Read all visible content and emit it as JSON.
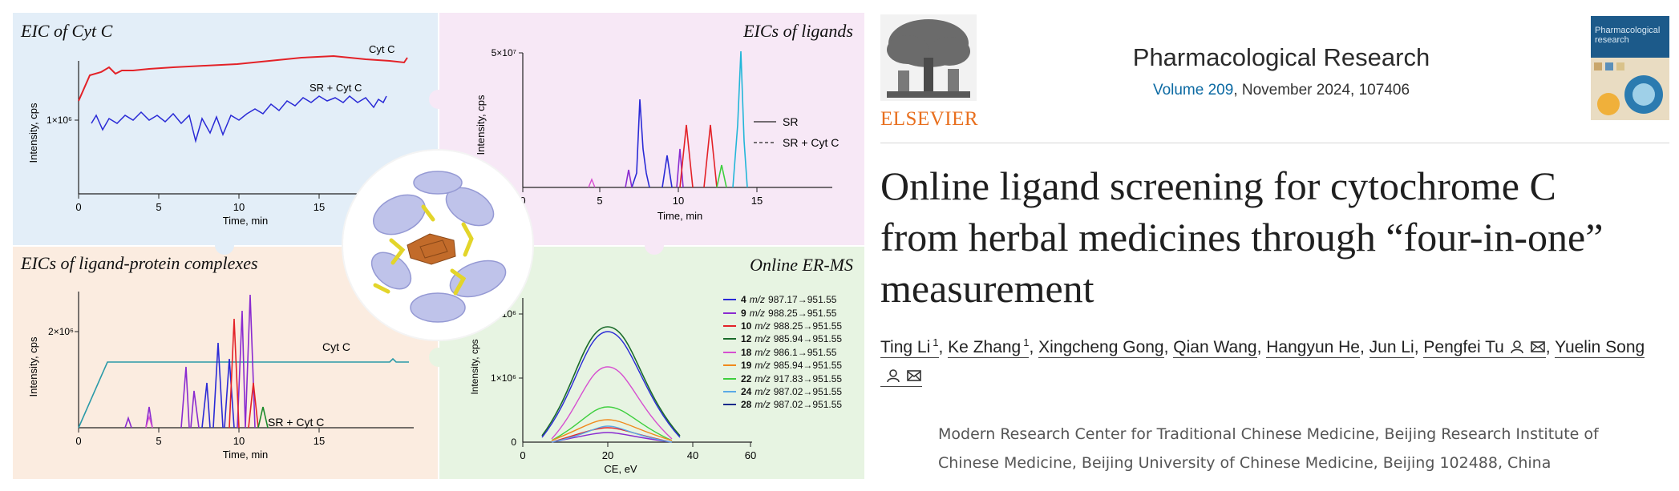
{
  "graphical_abstract": {
    "colors": {
      "panel_tl": "#e3eef8",
      "panel_tr": "#f7e8f6",
      "panel_bl": "#fbece0",
      "panel_br": "#e7f4e2",
      "red": "#e32228",
      "blue": "#2a2ad6",
      "teal": "#2a9aa8"
    },
    "panel_eic_cytc": {
      "title": "EIC of Cyt C",
      "ylabel": "Intensity, cps",
      "xlabel": "Time, min",
      "ytick": "1×10⁶",
      "xticks": [
        "0",
        "5",
        "10",
        "15"
      ],
      "label_top": "Cyt C",
      "label_bottom": "SR + Cyt C"
    },
    "panel_eics_ligands": {
      "title": "EICs of ligands",
      "ylabel": "Intensity, cps",
      "xlabel": "Time, min",
      "ytick": "5×10⁷",
      "xticks": [
        "0",
        "5",
        "10",
        "15"
      ],
      "legend": [
        "SR",
        "SR + Cyt C"
      ]
    },
    "panel_eics_complexes": {
      "title": "EICs of ligand-protein complexes",
      "ylabel": "Intensity, cps",
      "xlabel": "Time, min",
      "ytick": "2×10⁶",
      "xticks": [
        "0",
        "5",
        "10",
        "15"
      ],
      "label_top": "Cyt C",
      "label_bottom": "SR + Cyt C"
    },
    "panel_online_erms": {
      "title": "Online ER-MS",
      "ylabel": "Intensity, cps",
      "xlabel": "CE, eV",
      "yticks": [
        "0",
        "1×10⁶",
        "2×10⁶"
      ],
      "xticks": [
        "0",
        "20",
        "40",
        "60"
      ],
      "legend": [
        {
          "num": "4",
          "mz": "m/z",
          "val": "987.17→951.55",
          "color": "#2a2ad6"
        },
        {
          "num": "9",
          "mz": "m/z",
          "val": "988.25→951.55",
          "color": "#8a2bd0"
        },
        {
          "num": "10",
          "mz": "m/z",
          "val": "988.25→951.55",
          "color": "#e32228"
        },
        {
          "num": "12",
          "mz": "m/z",
          "val": "985.94→951.55",
          "color": "#1a6b2a"
        },
        {
          "num": "18",
          "mz": "m/z",
          "val": "986.1→951.55",
          "color": "#d64fd0"
        },
        {
          "num": "19",
          "mz": "m/z",
          "val": "985.94→951.55",
          "color": "#f08a1c"
        },
        {
          "num": "22",
          "mz": "m/z",
          "val": "917.83→951.55",
          "color": "#3ecf3e"
        },
        {
          "num": "24",
          "mz": "m/z",
          "val": "987.02→951.55",
          "color": "#5aa9e6"
        },
        {
          "num": "28",
          "mz": "m/z",
          "val": "987.02→951.55",
          "color": "#1a2a8a"
        }
      ]
    }
  },
  "header": {
    "publisher_logo_text": "ELSEVIER",
    "journal_name": "Pharmacological Research",
    "volume_link": "Volume 209",
    "volume_rest": ", November 2024, 107406",
    "cover_text": "Pharmacological research"
  },
  "article": {
    "title": "Online ligand screening for cytochrome C from herbal medicines through “four-in-one” measurement",
    "authors": [
      {
        "name": "Ting Li",
        "sup": "1",
        "icons": []
      },
      {
        "name": "Ke Zhang",
        "sup": "1",
        "icons": []
      },
      {
        "name": "Xingcheng Gong",
        "sup": "",
        "icons": []
      },
      {
        "name": "Qian Wang",
        "sup": "",
        "icons": []
      },
      {
        "name": "Hangyun He",
        "sup": "",
        "icons": []
      },
      {
        "name": "Jun Li",
        "sup": "",
        "icons": []
      },
      {
        "name": "Pengfei Tu",
        "sup": "",
        "icons": [
          "person",
          "email"
        ]
      },
      {
        "name": "Yuelin Song",
        "sup": "",
        "icons": [
          "person",
          "email"
        ]
      }
    ],
    "affiliation": "Modern Research Center for Traditional Chinese Medicine, Beijing Research Institute of Chinese Medicine, Beijing University of Chinese Medicine, Beijing 102488, China"
  }
}
